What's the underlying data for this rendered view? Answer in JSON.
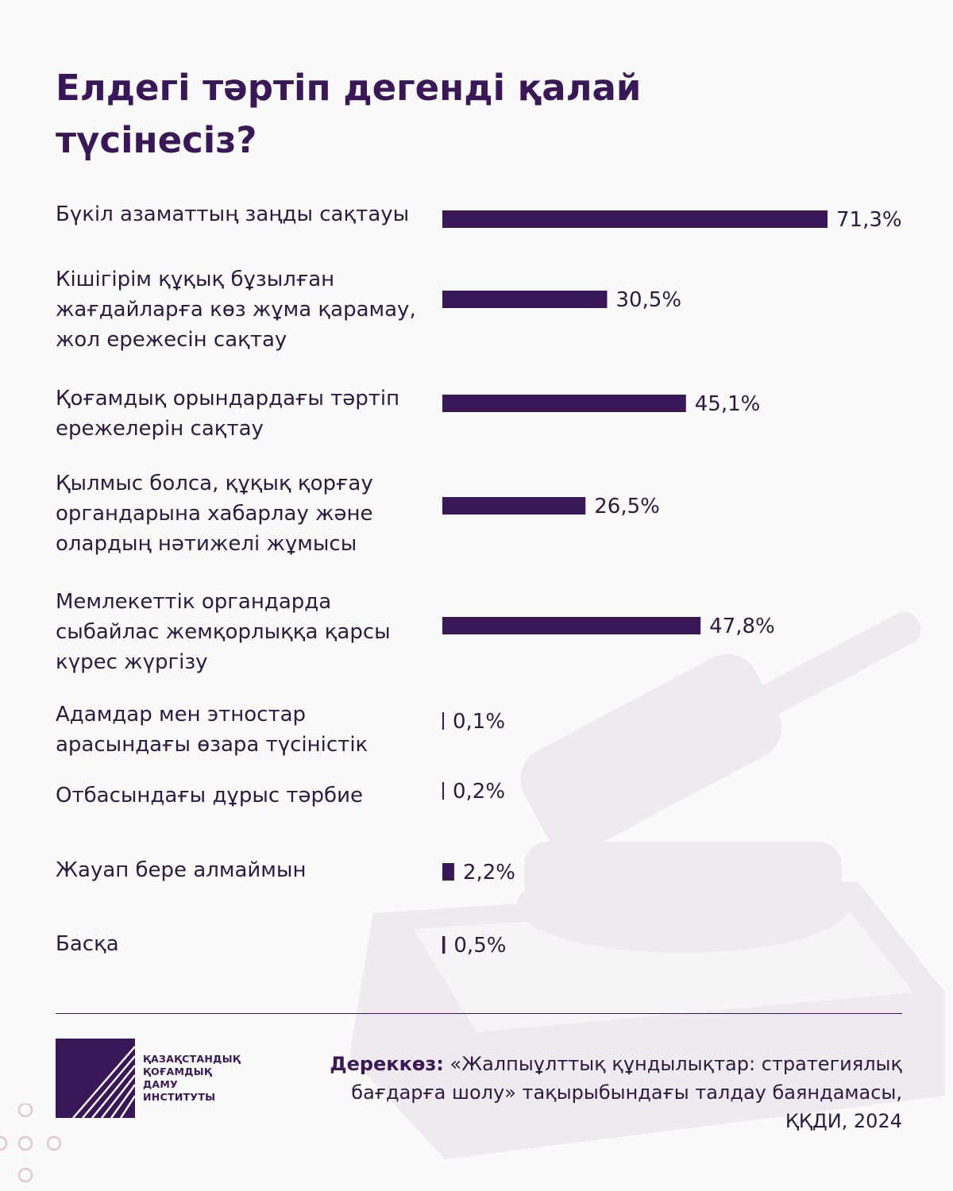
{
  "title_lines": [
    "Елдегі тәртіп дегенді қалай",
    "түсінесіз?"
  ],
  "chart_data": {
    "type": "bar",
    "orientation": "horizontal",
    "title": "Елдегі тәртіп дегенді қалай түсінесіз?",
    "unit": "%",
    "categories": [
      "Бүкіл азаматтың заңды сақтауы",
      "Кішігірім құқық бұзылған жағдайларға көз жұма қарамау, жол ережесін сақтау",
      "Қоғамдық орындардағы тәртіп ережелерін сақтау",
      "Қылмыс болса, құқық қорғау органдарына хабарлау және олардың нәтижелі жұмысы",
      "Мемлекеттік органдарда сыбайлас жемқорлыққа қарсы күрес жүргізу",
      "Адамдар мен этностар арасындағы өзара түсіністік",
      "Отбасындағы дұрыс тәрбие",
      "Жауап бере алмаймын",
      "Басқа"
    ],
    "category_lines": [
      [
        "Бүкіл азаматтың заңды сақтауы"
      ],
      [
        "Кішігірім құқық бұзылған",
        "жағдайларға көз жұма қарамау,",
        "жол ережесін сақтау"
      ],
      [
        "Қоғамдық орындардағы тәртіп",
        "ережелерін сақтау"
      ],
      [
        "Қылмыс болса, құқық қорғау",
        "органдарына хабарлау және",
        "олардың нәтижелі жұмысы"
      ],
      [
        "Мемлекеттік органдарда",
        "сыбайлас жемқорлыққа қарсы",
        "күрес жүргізу"
      ],
      [
        "Адамдар мен этностар",
        "арасындағы өзара түсіністік"
      ],
      [
        "Отбасындағы дұрыс тәрбие"
      ],
      [
        "Жауап бере алмаймын"
      ],
      [
        "Басқа"
      ]
    ],
    "values": [
      71.3,
      30.5,
      45.1,
      26.5,
      47.8,
      0.1,
      0.2,
      2.2,
      0.5
    ],
    "value_labels": [
      "71,3%",
      "30,5%",
      "45,1%",
      "26,5%",
      "47,8%",
      "0,1%",
      "0,2%",
      "2,2%",
      "0,5%"
    ],
    "xlim": [
      0,
      71.3
    ],
    "grid": false,
    "bar_color": "#3a1857"
  },
  "org_name_lines": [
    "ҚАЗАҚСТАНДЫҚ",
    "ҚОҒАМДЫҚ",
    "ДАМУ",
    "ИНСТИТУТЫ"
  ],
  "source": {
    "label": "Дереккөз:",
    "line1": "«Жалпыұлттық құндылықтар: стратегиялық",
    "line2": "бағдарға шолу» тақырыбындағы талдау баяндамасы,",
    "line3": "ҚҚДИ, 2024"
  }
}
